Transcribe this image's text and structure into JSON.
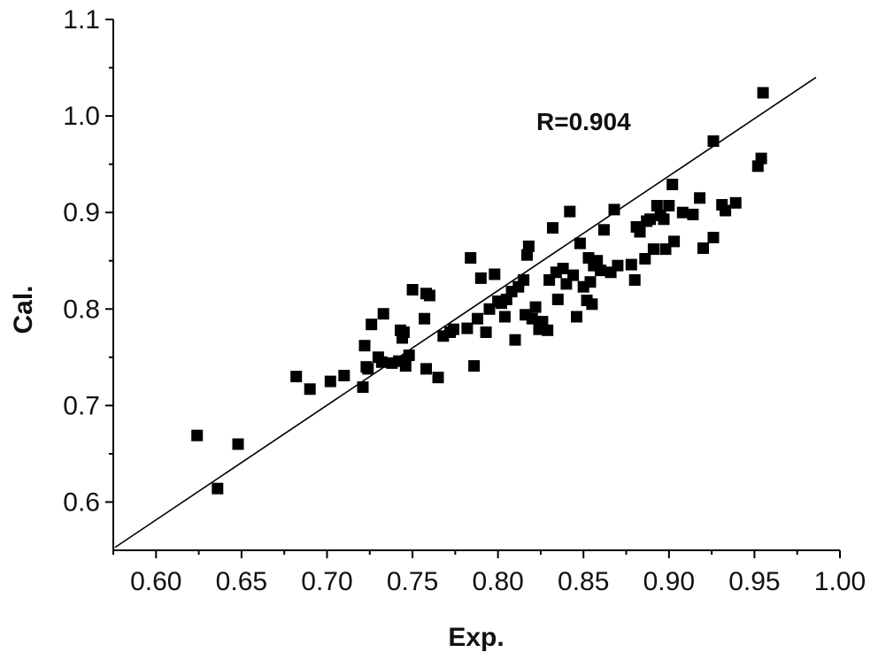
{
  "chart_data": {
    "type": "scatter",
    "title": "",
    "xlabel": "Exp.",
    "ylabel": "Cal.",
    "xlim": [
      0.575,
      1.0
    ],
    "ylim": [
      0.55,
      1.1
    ],
    "xticks": [
      "0.60",
      "0.65",
      "0.70",
      "0.75",
      "0.80",
      "0.85",
      "0.90",
      "0.95",
      "1.00"
    ],
    "yticks": [
      "0.6",
      "0.7",
      "0.8",
      "0.9",
      "1.0",
      "1.1"
    ],
    "annotation": "R=0.904",
    "grid": false,
    "fit_line": {
      "x": [
        0.576,
        0.986
      ],
      "y": [
        0.553,
        1.04
      ]
    },
    "marker_color": "#000000",
    "series": [
      {
        "marker": "square",
        "points": [
          [
            0.624,
            0.669
          ],
          [
            0.636,
            0.614
          ],
          [
            0.648,
            0.66
          ],
          [
            0.682,
            0.73
          ],
          [
            0.69,
            0.717
          ],
          [
            0.702,
            0.725
          ],
          [
            0.71,
            0.731
          ],
          [
            0.721,
            0.719
          ],
          [
            0.722,
            0.762
          ],
          [
            0.723,
            0.74
          ],
          [
            0.724,
            0.738
          ],
          [
            0.726,
            0.784
          ],
          [
            0.73,
            0.75
          ],
          [
            0.732,
            0.745
          ],
          [
            0.733,
            0.795
          ],
          [
            0.738,
            0.744
          ],
          [
            0.742,
            0.746
          ],
          [
            0.743,
            0.778
          ],
          [
            0.744,
            0.77
          ],
          [
            0.745,
            0.776
          ],
          [
            0.746,
            0.741
          ],
          [
            0.748,
            0.752
          ],
          [
            0.75,
            0.82
          ],
          [
            0.757,
            0.79
          ],
          [
            0.758,
            0.816
          ],
          [
            0.758,
            0.738
          ],
          [
            0.76,
            0.814
          ],
          [
            0.765,
            0.729
          ],
          [
            0.768,
            0.772
          ],
          [
            0.772,
            0.776
          ],
          [
            0.774,
            0.779
          ],
          [
            0.782,
            0.78
          ],
          [
            0.784,
            0.853
          ],
          [
            0.786,
            0.741
          ],
          [
            0.788,
            0.79
          ],
          [
            0.79,
            0.832
          ],
          [
            0.793,
            0.776
          ],
          [
            0.795,
            0.8
          ],
          [
            0.798,
            0.836
          ],
          [
            0.8,
            0.808
          ],
          [
            0.802,
            0.806
          ],
          [
            0.804,
            0.792
          ],
          [
            0.805,
            0.81
          ],
          [
            0.808,
            0.818
          ],
          [
            0.81,
            0.768
          ],
          [
            0.812,
            0.823
          ],
          [
            0.815,
            0.83
          ],
          [
            0.816,
            0.794
          ],
          [
            0.817,
            0.856
          ],
          [
            0.818,
            0.865
          ],
          [
            0.82,
            0.79
          ],
          [
            0.822,
            0.802
          ],
          [
            0.824,
            0.779
          ],
          [
            0.826,
            0.787
          ],
          [
            0.829,
            0.778
          ],
          [
            0.83,
            0.83
          ],
          [
            0.832,
            0.884
          ],
          [
            0.834,
            0.838
          ],
          [
            0.835,
            0.81
          ],
          [
            0.838,
            0.842
          ],
          [
            0.84,
            0.826
          ],
          [
            0.842,
            0.901
          ],
          [
            0.844,
            0.835
          ],
          [
            0.846,
            0.792
          ],
          [
            0.848,
            0.868
          ],
          [
            0.85,
            0.823
          ],
          [
            0.852,
            0.809
          ],
          [
            0.853,
            0.853
          ],
          [
            0.854,
            0.828
          ],
          [
            0.855,
            0.805
          ],
          [
            0.856,
            0.845
          ],
          [
            0.858,
            0.85
          ],
          [
            0.86,
            0.84
          ],
          [
            0.862,
            0.882
          ],
          [
            0.866,
            0.838
          ],
          [
            0.868,
            0.903
          ],
          [
            0.87,
            0.845
          ],
          [
            0.878,
            0.846
          ],
          [
            0.88,
            0.83
          ],
          [
            0.881,
            0.885
          ],
          [
            0.883,
            0.88
          ],
          [
            0.886,
            0.852
          ],
          [
            0.887,
            0.891
          ],
          [
            0.889,
            0.893
          ],
          [
            0.891,
            0.862
          ],
          [
            0.893,
            0.907
          ],
          [
            0.895,
            0.897
          ],
          [
            0.897,
            0.893
          ],
          [
            0.898,
            0.862
          ],
          [
            0.9,
            0.907
          ],
          [
            0.902,
            0.929
          ],
          [
            0.903,
            0.87
          ],
          [
            0.908,
            0.9
          ],
          [
            0.914,
            0.898
          ],
          [
            0.918,
            0.915
          ],
          [
            0.92,
            0.863
          ],
          [
            0.926,
            0.874
          ],
          [
            0.926,
            0.974
          ],
          [
            0.931,
            0.908
          ],
          [
            0.933,
            0.902
          ],
          [
            0.939,
            0.91
          ],
          [
            0.952,
            0.948
          ],
          [
            0.954,
            0.956
          ],
          [
            0.955,
            1.024
          ]
        ]
      }
    ]
  }
}
